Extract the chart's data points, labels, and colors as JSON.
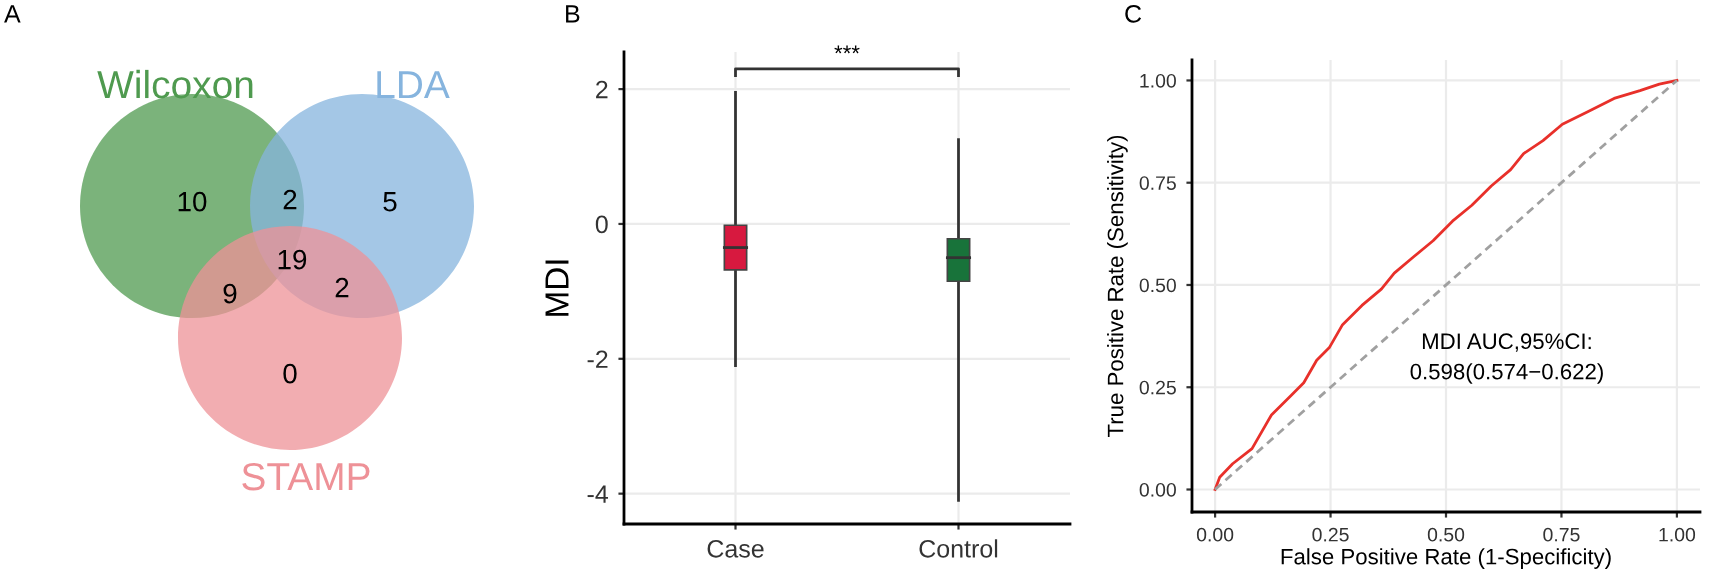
{
  "chart_data": [
    {
      "type": "other",
      "title": "A",
      "colors": [
        "#4f9a4f",
        "#86b4de",
        "#ee9197"
      ],
      "annotations": [
        "Wilcoxon",
        "LDA",
        "STAMP",
        "10",
        "5",
        "0",
        "2",
        "9",
        "2",
        "19"
      ]
    },
    {
      "type": "box",
      "title": "B",
      "ylabel": "MDI",
      "categories": [
        "Case",
        "Control"
      ],
      "colors": [
        "#d7193f",
        "#18733a"
      ],
      "boxes": [
        {
          "low": -2.1,
          "q1": -0.68,
          "median": -0.35,
          "q3": -0.02,
          "high": 1.95
        },
        {
          "low": -4.1,
          "q1": -0.85,
          "median": -0.5,
          "q3": -0.22,
          "high": 1.25
        }
      ],
      "ylim": [
        -4.45,
        2.55
      ],
      "yticks": [
        -4,
        -2,
        0,
        2
      ],
      "grid": true,
      "annotations": [
        "***"
      ]
    },
    {
      "type": "line",
      "title": "C",
      "xlabel": "False Positive Rate (1-Specificity)",
      "ylabel": "True Positive Rate (Sensitivity)",
      "series": [
        {
          "color": "#e8302a",
          "x": [
            0,
            0.01,
            0.038,
            0.08,
            0.122,
            0.164,
            0.192,
            0.22,
            0.248,
            0.276,
            0.318,
            0.36,
            0.388,
            0.43,
            0.472,
            0.514,
            0.556,
            0.598,
            0.64,
            0.668,
            0.71,
            0.752,
            0.808,
            0.864,
            0.92,
            0.962,
            1
          ],
          "values": [
            0,
            0.03,
            0.063,
            0.1,
            0.182,
            0.229,
            0.261,
            0.316,
            0.348,
            0.403,
            0.45,
            0.49,
            0.529,
            0.569,
            0.608,
            0.656,
            0.695,
            0.742,
            0.782,
            0.821,
            0.853,
            0.893,
            0.924,
            0.956,
            0.975,
            0.991,
            1
          ]
        },
        {
          "color": "#a0a0a0",
          "line_style": "dashed",
          "x": [
            0,
            1
          ],
          "values": [
            0,
            1
          ]
        }
      ],
      "xlim": [
        -0.05,
        1.05
      ],
      "ylim": [
        -0.055,
        1.05
      ],
      "xticks": [
        {
          "value": 0,
          "label": "0.00"
        },
        {
          "value": 0.25,
          "label": "0.25"
        },
        {
          "value": 0.5,
          "label": "0.50"
        },
        {
          "value": 0.75,
          "label": "0.75"
        },
        {
          "value": 1,
          "label": "1.00"
        }
      ],
      "yticks": [
        {
          "value": 0,
          "label": "0.00"
        },
        {
          "value": 0.25,
          "label": "0.25"
        },
        {
          "value": 0.5,
          "label": "0.50"
        },
        {
          "value": 0.75,
          "label": "0.75"
        },
        {
          "value": 1,
          "label": "1.00"
        }
      ],
      "grid": true,
      "annotations": [
        "MDI AUC,95%CI:\n0.598(0.574−0.622)"
      ]
    }
  ]
}
